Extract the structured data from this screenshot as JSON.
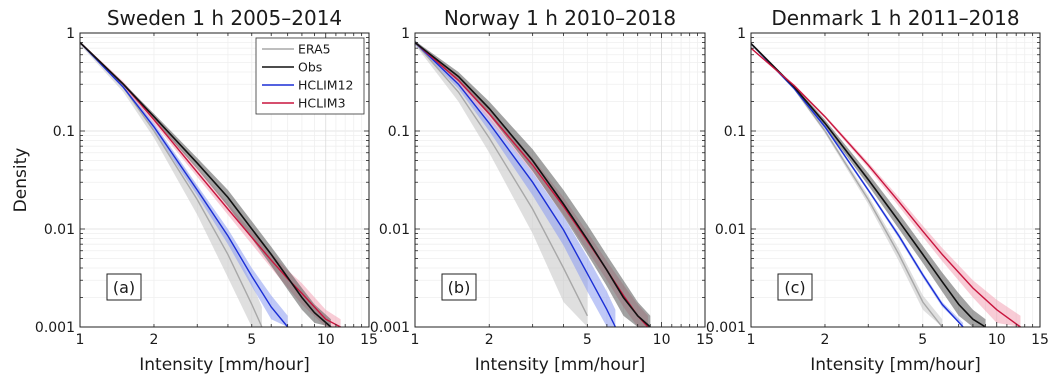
{
  "ylabel": "Density",
  "legend": {
    "placement": "top-right",
    "entries": [
      {
        "name": "ERA5",
        "color": "#a8a8a8"
      },
      {
        "name": "Obs",
        "color": "#111111"
      },
      {
        "name": "HCLIM12",
        "color": "#1b2fd6"
      },
      {
        "name": "HCLIM3",
        "color": "#c8153e"
      }
    ]
  },
  "chart_data": [
    {
      "type": "line",
      "title": "Sweden 1 h 2005–2014",
      "panel_label": "(a)",
      "xlabel": "Intensity [mm/hour]",
      "ylabel": "Density",
      "xscale": "log",
      "yscale": "log",
      "xlim": [
        1,
        15
      ],
      "ylim": [
        0.001,
        1
      ],
      "xticks": [
        1,
        2,
        5,
        10,
        15
      ],
      "yticks": [
        "0.001",
        "0.01",
        "0.1",
        "1"
      ],
      "grid": true,
      "series": [
        {
          "name": "ERA5",
          "color": "#a8a8a8",
          "band_color": "#c4c4c4",
          "x": [
            1,
            1.5,
            2,
            3,
            4,
            5,
            5.5
          ],
          "y": [
            0.8,
            0.28,
            0.1,
            0.02,
            0.0055,
            0.0017,
            0.001
          ],
          "band_lower": [
            0.76,
            0.25,
            0.085,
            0.014,
            0.0032,
            0.001,
            0.001
          ],
          "band_upper": [
            0.82,
            0.3,
            0.115,
            0.027,
            0.0085,
            0.0028,
            0.0016
          ]
        },
        {
          "name": "HCLIM12",
          "color": "#1b2fd6",
          "band_color": "#8a9af0",
          "x": [
            1,
            1.5,
            2,
            3,
            4,
            5,
            6,
            7
          ],
          "y": [
            0.8,
            0.28,
            0.11,
            0.025,
            0.0085,
            0.0033,
            0.0016,
            0.001
          ],
          "band_lower": [
            0.78,
            0.27,
            0.1,
            0.022,
            0.007,
            0.0026,
            0.0012,
            0.001
          ],
          "band_upper": [
            0.82,
            0.3,
            0.12,
            0.028,
            0.01,
            0.004,
            0.0021,
            0.0013
          ]
        },
        {
          "name": "HCLIM3",
          "color": "#c8153e",
          "band_color": "#f2a3b5",
          "x": [
            1,
            1.5,
            2,
            3,
            4,
            5,
            6,
            7,
            8,
            10,
            11.5
          ],
          "y": [
            0.8,
            0.3,
            0.13,
            0.038,
            0.016,
            0.0082,
            0.0048,
            0.0031,
            0.0022,
            0.0012,
            0.001
          ],
          "band_lower": [
            0.78,
            0.28,
            0.12,
            0.034,
            0.014,
            0.007,
            0.004,
            0.0025,
            0.0017,
            0.001,
            0.001
          ],
          "band_upper": [
            0.82,
            0.32,
            0.14,
            0.042,
            0.018,
            0.0095,
            0.0057,
            0.0038,
            0.0028,
            0.0015,
            0.0012
          ]
        },
        {
          "name": "Obs",
          "color": "#111111",
          "band_color": "#555555",
          "x": [
            1,
            1.5,
            2,
            3,
            4,
            5,
            6,
            7,
            8,
            9,
            10.5
          ],
          "y": [
            0.8,
            0.3,
            0.14,
            0.047,
            0.021,
            0.01,
            0.0055,
            0.0032,
            0.002,
            0.0014,
            0.001
          ],
          "band_lower": [
            0.78,
            0.29,
            0.13,
            0.041,
            0.017,
            0.008,
            0.0042,
            0.0024,
            0.0015,
            0.0011,
            0.001
          ],
          "band_upper": [
            0.82,
            0.31,
            0.15,
            0.053,
            0.025,
            0.012,
            0.0066,
            0.0039,
            0.0025,
            0.0017,
            0.0012
          ]
        }
      ]
    },
    {
      "type": "line",
      "title": "Norway 1 h 2010–2018",
      "panel_label": "(b)",
      "xlabel": "Intensity [mm/hour]",
      "xscale": "log",
      "yscale": "log",
      "xlim": [
        1,
        15
      ],
      "ylim": [
        0.001,
        1
      ],
      "xticks": [
        1,
        2,
        5,
        10,
        15
      ],
      "yticks": [
        "0.001",
        "0.01",
        "0.1",
        "1"
      ],
      "grid": true,
      "series": [
        {
          "name": "ERA5",
          "color": "#a8a8a8",
          "band_color": "#c4c4c4",
          "x": [
            1,
            1.5,
            2,
            3,
            4,
            5
          ],
          "y": [
            0.8,
            0.25,
            0.085,
            0.016,
            0.004,
            0.0013
          ],
          "band_lower": [
            0.76,
            0.2,
            0.06,
            0.009,
            0.0018,
            0.001
          ],
          "band_upper": [
            0.84,
            0.32,
            0.12,
            0.03,
            0.01,
            0.0035
          ]
        },
        {
          "name": "HCLIM12",
          "color": "#1b2fd6",
          "band_color": "#8a9af0",
          "x": [
            1,
            1.5,
            2,
            3,
            4,
            5,
            6,
            6.5
          ],
          "y": [
            0.8,
            0.3,
            0.12,
            0.03,
            0.0098,
            0.0035,
            0.0015,
            0.001
          ],
          "band_lower": [
            0.76,
            0.27,
            0.1,
            0.022,
            0.0068,
            0.0023,
            0.001,
            0.001
          ],
          "band_upper": [
            0.84,
            0.33,
            0.14,
            0.038,
            0.0135,
            0.0052,
            0.0023,
            0.0015
          ]
        },
        {
          "name": "HCLIM3",
          "color": "#c8153e",
          "band_color": "#f2a3b5",
          "x": [
            1,
            1.5,
            2,
            3,
            4,
            5,
            6,
            7,
            8,
            8.8
          ],
          "y": [
            0.8,
            0.33,
            0.15,
            0.045,
            0.017,
            0.0075,
            0.0038,
            0.0021,
            0.0013,
            0.001
          ],
          "band_lower": [
            0.78,
            0.3,
            0.13,
            0.038,
            0.014,
            0.006,
            0.003,
            0.0016,
            0.001,
            0.001
          ],
          "band_upper": [
            0.82,
            0.36,
            0.17,
            0.053,
            0.021,
            0.0093,
            0.0047,
            0.0027,
            0.0017,
            0.0013
          ]
        },
        {
          "name": "Obs",
          "color": "#111111",
          "band_color": "#555555",
          "x": [
            1,
            1.5,
            2,
            3,
            4,
            5,
            6,
            7,
            8,
            9
          ],
          "y": [
            0.8,
            0.36,
            0.17,
            0.05,
            0.018,
            0.0078,
            0.0038,
            0.002,
            0.0013,
            0.001
          ],
          "band_lower": [
            0.77,
            0.32,
            0.145,
            0.039,
            0.0135,
            0.0055,
            0.0026,
            0.0013,
            0.001,
            0.001
          ],
          "band_upper": [
            0.83,
            0.4,
            0.2,
            0.065,
            0.025,
            0.011,
            0.0054,
            0.003,
            0.0018,
            0.0013
          ]
        }
      ]
    },
    {
      "type": "line",
      "title": "Denmark 1 h 2011–2018",
      "panel_label": "(c)",
      "xlabel": "Intensity [mm/hour]",
      "xscale": "log",
      "yscale": "log",
      "xlim": [
        1,
        15
      ],
      "ylim": [
        0.001,
        1
      ],
      "xticks": [
        1,
        2,
        5,
        10,
        15
      ],
      "yticks": [
        "0.001",
        "0.01",
        "0.1",
        "1"
      ],
      "grid": true,
      "series": [
        {
          "name": "ERA5",
          "color": "#a8a8a8",
          "band_color": "#c4c4c4",
          "x": [
            1,
            1.5,
            2,
            3,
            4,
            5,
            6
          ],
          "y": [
            0.78,
            0.27,
            0.1,
            0.02,
            0.0055,
            0.0018,
            0.001
          ],
          "band_lower": [
            0.76,
            0.26,
            0.095,
            0.018,
            0.0047,
            0.0015,
            0.001
          ],
          "band_upper": [
            0.8,
            0.28,
            0.105,
            0.022,
            0.0063,
            0.0021,
            0.0012
          ]
        },
        {
          "name": "HCLIM12",
          "color": "#1b2fd6",
          "band_color": "#8a9af0",
          "x": [
            1,
            1.5,
            2,
            3,
            4,
            5,
            6,
            7.3
          ],
          "y": [
            0.78,
            0.27,
            0.11,
            0.025,
            0.0085,
            0.0034,
            0.0017,
            0.001
          ],
          "band_lower": [
            0.77,
            0.265,
            0.105,
            0.024,
            0.008,
            0.0032,
            0.0016,
            0.001
          ],
          "band_upper": [
            0.79,
            0.275,
            0.115,
            0.026,
            0.009,
            0.0036,
            0.0018,
            0.0011
          ]
        },
        {
          "name": "Obs",
          "color": "#111111",
          "band_color": "#555555",
          "x": [
            1,
            1.5,
            2,
            3,
            4,
            5,
            6,
            7,
            8,
            9
          ],
          "y": [
            0.78,
            0.28,
            0.12,
            0.032,
            0.012,
            0.0055,
            0.0029,
            0.0017,
            0.0012,
            0.001
          ],
          "band_lower": [
            0.76,
            0.27,
            0.11,
            0.028,
            0.01,
            0.0045,
            0.0023,
            0.0013,
            0.001,
            0.001
          ],
          "band_upper": [
            0.8,
            0.29,
            0.13,
            0.037,
            0.0145,
            0.0067,
            0.0036,
            0.0022,
            0.0015,
            0.0012
          ]
        },
        {
          "name": "HCLIM3",
          "color": "#c8153e",
          "band_color": "#f2a3b5",
          "x": [
            1,
            1.5,
            2,
            3,
            4,
            5,
            6,
            8,
            10,
            12.5
          ],
          "y": [
            0.7,
            0.29,
            0.14,
            0.045,
            0.019,
            0.0095,
            0.0055,
            0.0025,
            0.0015,
            0.001
          ],
          "band_lower": [
            0.69,
            0.28,
            0.135,
            0.042,
            0.017,
            0.0083,
            0.0047,
            0.002,
            0.0011,
            0.001
          ],
          "band_upper": [
            0.71,
            0.3,
            0.145,
            0.048,
            0.021,
            0.0108,
            0.0064,
            0.003,
            0.0019,
            0.0013
          ]
        }
      ]
    }
  ]
}
